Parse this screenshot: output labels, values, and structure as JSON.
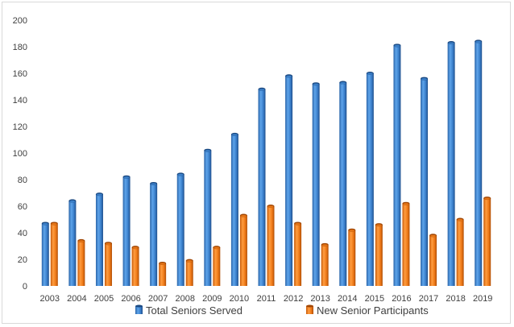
{
  "chart_data": {
    "type": "bar",
    "categories": [
      "2003",
      "2004",
      "2005",
      "2006",
      "2007",
      "2008",
      "2009",
      "2010",
      "2011",
      "2012",
      "2013",
      "2014",
      "2015",
      "2016",
      "2017",
      "2018",
      "2019"
    ],
    "series": [
      {
        "name": "Total Seniors Served",
        "color": "#3f86d1",
        "values": [
          47,
          64,
          69,
          82,
          77,
          84,
          102,
          114,
          148,
          158,
          152,
          153,
          160,
          181,
          156,
          183,
          184
        ]
      },
      {
        "name": "New Senior Participants",
        "color": "#f07c19",
        "values": [
          47,
          34,
          32,
          29,
          17,
          19,
          29,
          53,
          60,
          47,
          31,
          42,
          46,
          62,
          38,
          50,
          66
        ]
      }
    ],
    "title": "",
    "xlabel": "",
    "ylabel": "",
    "ylim": [
      0,
      200
    ],
    "yticks": [
      0,
      20,
      40,
      60,
      80,
      100,
      120,
      140,
      160,
      180,
      200
    ],
    "grid": false,
    "legend": "bottom"
  }
}
